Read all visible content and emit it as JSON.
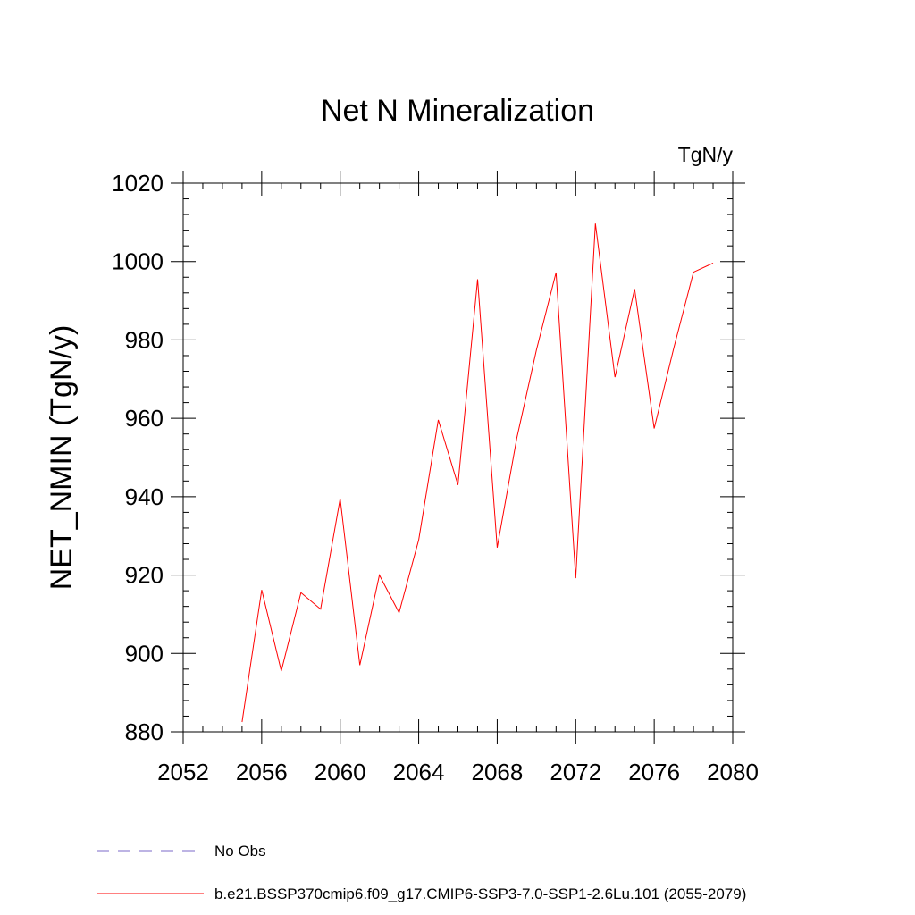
{
  "chart_data": {
    "type": "line",
    "title": "Net N Mineralization",
    "units_label": "TgN/y",
    "xlabel": "",
    "ylabel": "NET_NMIN  (TgN/y)",
    "xlim": [
      2052,
      2080
    ],
    "ylim": [
      880,
      1020
    ],
    "x_ticks": [
      2052,
      2056,
      2060,
      2064,
      2068,
      2072,
      2076,
      2080
    ],
    "y_ticks": [
      880,
      900,
      920,
      940,
      960,
      980,
      1000,
      1020
    ],
    "grid": false,
    "legend_position": "bottom",
    "series": [
      {
        "name": "b.e21.BSSP370cmip6.f09_g17.CMIP6-SSP3-7.0-SSP1-2.6Lu.101 (2055-2079)",
        "color": "#ff0000",
        "style": "solid",
        "x": [
          2055,
          2056,
          2057,
          2058,
          2059,
          2060,
          2061,
          2062,
          2063,
          2064,
          2065,
          2066,
          2067,
          2068,
          2069,
          2070,
          2071,
          2072,
          2073,
          2074,
          2075,
          2076,
          2077,
          2078,
          2079
        ],
        "y": [
          882.5,
          916.2,
          895.5,
          915.5,
          911.3,
          939.5,
          897.0,
          920.0,
          910.4,
          929.0,
          959.6,
          943.0,
          995.5,
          927.0,
          955.0,
          977.5,
          997.2,
          919.2,
          1009.7,
          970.5,
          993.0,
          957.4,
          978.0,
          997.3,
          999.6
        ]
      }
    ],
    "legend": [
      {
        "label": "No Obs",
        "color": "#7b68c8",
        "style": "dashed"
      },
      {
        "label": "b.e21.BSSP370cmip6.f09_g17.CMIP6-SSP3-7.0-SSP1-2.6Lu.101 (2055-2079)",
        "color": "#ff0000",
        "style": "solid"
      }
    ]
  }
}
